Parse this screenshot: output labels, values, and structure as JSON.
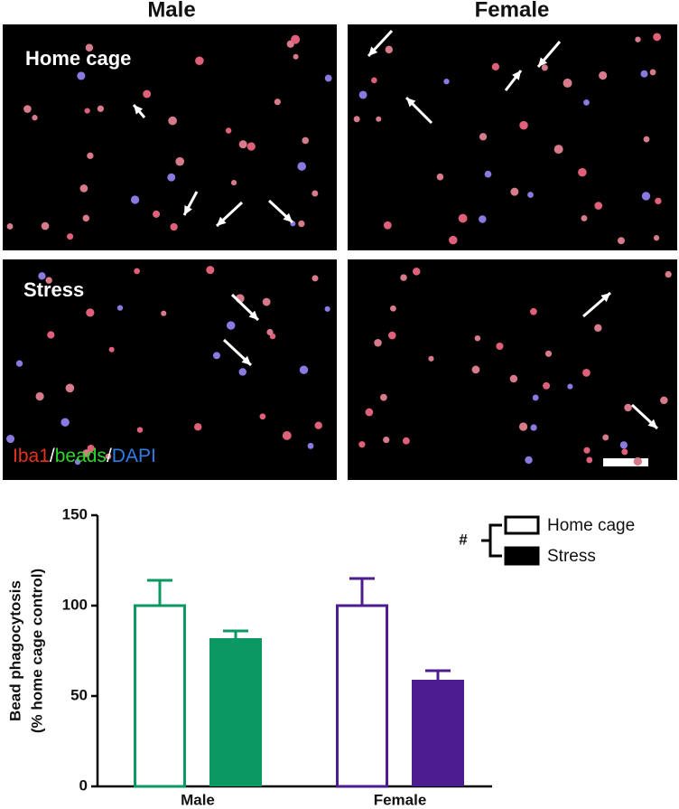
{
  "figure": {
    "columns": [
      "Male",
      "Female"
    ],
    "rows": [
      "Home cage",
      "Stress"
    ],
    "stain": [
      {
        "text": "Iba1",
        "color": "#e8321e"
      },
      {
        "text": "/",
        "color": "#ffffff"
      },
      {
        "text": "beads",
        "color": "#2fd52a"
      },
      {
        "text": "/",
        "color": "#ffffff"
      },
      {
        "text": "DAPI",
        "color": "#2f7de8"
      }
    ]
  },
  "chart_data": {
    "type": "bar",
    "ylabel": [
      "Bead phagocytosis",
      "(% home cage control)"
    ],
    "categories": [
      "Male",
      "Female"
    ],
    "category_colors": [
      "#0b9862",
      "#4d1c8f"
    ],
    "series": [
      {
        "name": "Home cage",
        "style": "open",
        "values": [
          100,
          100
        ],
        "errors": [
          14,
          15
        ]
      },
      {
        "name": "Stress",
        "style": "filled",
        "values": [
          82,
          59
        ],
        "errors": [
          4,
          5
        ]
      }
    ],
    "ylim": [
      0,
      150
    ],
    "yticks": [
      0,
      50,
      100,
      150
    ],
    "annotation": "#"
  }
}
